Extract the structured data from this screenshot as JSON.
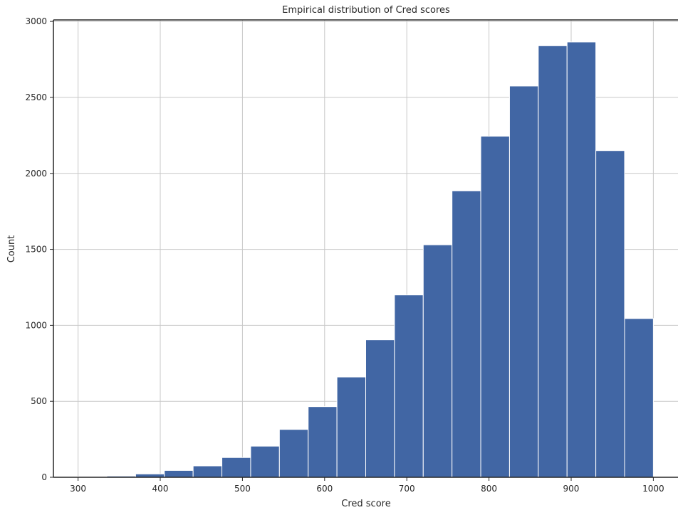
{
  "chart_data": {
    "type": "bar",
    "title": "Empirical distribution of Cred scores",
    "xlabel": "Cred score",
    "ylabel": "Count",
    "bar_color": "#4166a4",
    "grid_color": "#c8c8c8",
    "grid": true,
    "xlim": [
      270,
      1030
    ],
    "ylim": [
      0,
      3010
    ],
    "xticks": [
      300,
      400,
      500,
      600,
      700,
      800,
      900,
      1000
    ],
    "yticks": [
      0,
      500,
      1000,
      1500,
      2000,
      2500,
      3000
    ],
    "bins": [
      {
        "x0": 300,
        "x1": 335,
        "count": 5
      },
      {
        "x0": 335,
        "x1": 370,
        "count": 8
      },
      {
        "x0": 370,
        "x1": 405,
        "count": 22
      },
      {
        "x0": 405,
        "x1": 440,
        "count": 45
      },
      {
        "x0": 440,
        "x1": 475,
        "count": 75
      },
      {
        "x0": 475,
        "x1": 510,
        "count": 130
      },
      {
        "x0": 510,
        "x1": 545,
        "count": 205
      },
      {
        "x0": 545,
        "x1": 580,
        "count": 315
      },
      {
        "x0": 580,
        "x1": 615,
        "count": 465
      },
      {
        "x0": 615,
        "x1": 650,
        "count": 660
      },
      {
        "x0": 650,
        "x1": 685,
        "count": 905
      },
      {
        "x0": 685,
        "x1": 720,
        "count": 1200
      },
      {
        "x0": 720,
        "x1": 755,
        "count": 1530
      },
      {
        "x0": 755,
        "x1": 790,
        "count": 1885
      },
      {
        "x0": 790,
        "x1": 825,
        "count": 2245
      },
      {
        "x0": 825,
        "x1": 860,
        "count": 2575
      },
      {
        "x0": 860,
        "x1": 895,
        "count": 2840
      },
      {
        "x0": 895,
        "x1": 930,
        "count": 2865
      },
      {
        "x0": 930,
        "x1": 965,
        "count": 2150
      },
      {
        "x0": 965,
        "x1": 1000,
        "count": 1045
      }
    ]
  }
}
